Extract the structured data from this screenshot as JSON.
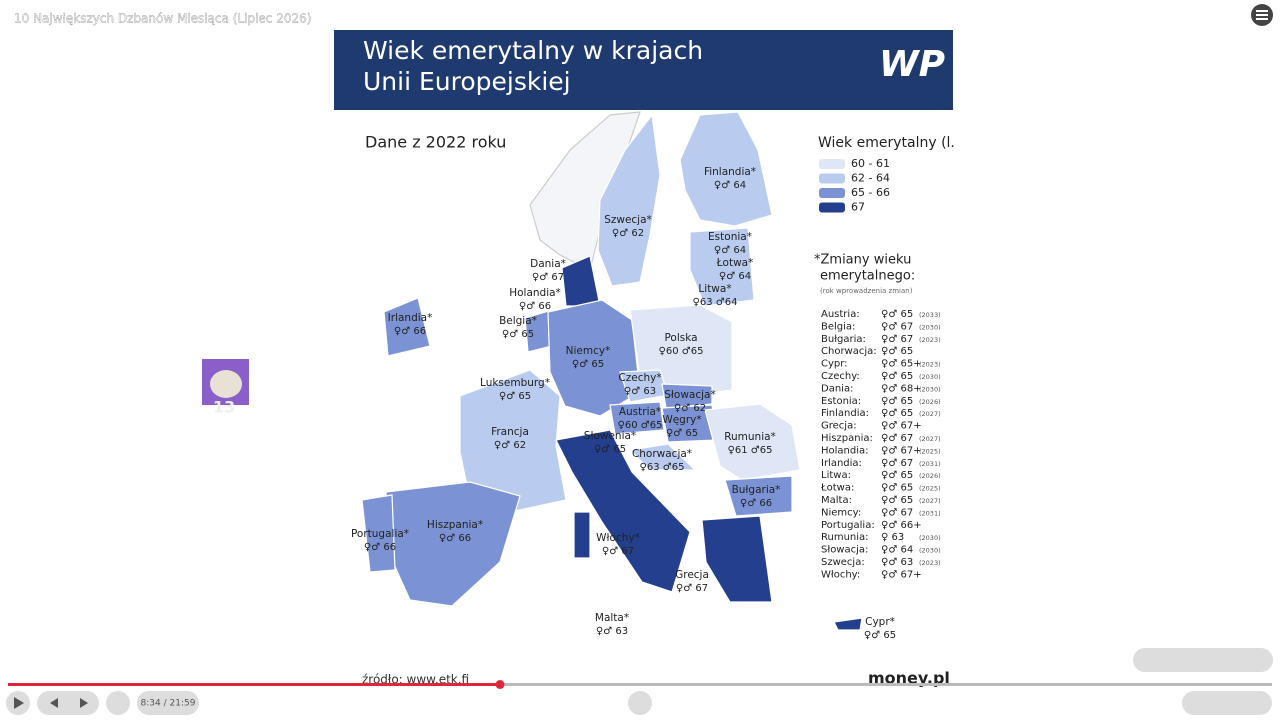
{
  "video": {
    "title": "10 Największych Dzbanów Miesiąca (Lipiec 2026)",
    "time": "8:34 / 21:59",
    "avatar_text": "13"
  },
  "slide": {
    "title_line1": "Wiek emerytalny w krajach",
    "title_line2": "Unii Europejskiej",
    "logo": "WP",
    "subtitle": "Dane z 2022 roku",
    "legend": {
      "title": "Wiek emerytalny (l.",
      "items": [
        {
          "label": "60 - 61",
          "color": "#dfe7f7"
        },
        {
          "label": "62 - 64",
          "color": "#b9cbef"
        },
        {
          "label": "65 - 66",
          "color": "#7b93d4"
        },
        {
          "label": "67",
          "color": "#243f8d"
        }
      ]
    },
    "changes": {
      "title_line1": "*Zmiany wieku",
      "title_line2": "emerytalnego:",
      "note": "(rok wprowadzenia zmian)",
      "rows": [
        [
          "Austria:",
          "♀♂ 65",
          "(2033)"
        ],
        [
          "Belgia:",
          "♀♂ 67",
          "(2030)"
        ],
        [
          "Bułgaria:",
          "♀♂ 67",
          "(2023)"
        ],
        [
          "Chorwacja:",
          "♀♂ 65",
          null
        ],
        [
          "Cypr:",
          "♀♂ 65+",
          "(2023)"
        ],
        [
          "Czechy:",
          "♀♂ 65",
          "(2030)"
        ],
        [
          "Dania:",
          "♀♂ 68+",
          "(2030)"
        ],
        [
          "Estonia:",
          "♀♂ 65",
          "(2026)"
        ],
        [
          "Finlandia:",
          "♀♂ 65",
          "(2027)"
        ],
        [
          "Grecja:",
          "♀♂ 67+",
          null
        ],
        [
          "Hiszpania:",
          "♀♂ 67",
          "(2027)"
        ],
        [
          "Holandia:",
          "♀♂ 67+",
          "(2025)"
        ],
        [
          "Irlandia:",
          "♀♂ 67",
          "(2031)"
        ],
        [
          "Litwa:",
          "♀♂ 65",
          "(2026)"
        ],
        [
          "Łotwa:",
          "♀♂ 65",
          "(2025)"
        ],
        [
          "Malta:",
          "♀♂ 65",
          "(2027)"
        ],
        [
          "Niemcy:",
          "♀♂ 67",
          "(2031)"
        ],
        [
          "Portugalia:",
          "♀♂ 66+",
          null
        ],
        [
          "Rumunia:",
          "♀ 63",
          "(2030)"
        ],
        [
          "Słowacja:",
          "♀♂ 64",
          "(2030)"
        ],
        [
          "Szwecja:",
          "♀♂ 63",
          "(2023)"
        ],
        [
          "Włochy:",
          "♀♂ 67+",
          null
        ]
      ]
    },
    "map_labels": [
      [
        "Finlandia*",
        "♀♂ 64"
      ],
      [
        "Szwecja*",
        "♀♂ 62"
      ],
      [
        "Estonia*",
        "♀♂ 64"
      ],
      [
        "Łotwa*",
        "♀♂ 64"
      ],
      [
        "Litwa*",
        "♀63 ♂64"
      ],
      [
        "Dania*",
        "♀♂ 67"
      ],
      [
        "Holandia*",
        "♀♂ 66"
      ],
      [
        "Irlandia*",
        "♀♂ 66"
      ],
      [
        "Belgia*",
        "♀♂ 65"
      ],
      [
        "Niemcy*",
        "♀♂ 65"
      ],
      [
        "Polska",
        "♀60 ♂65"
      ],
      [
        "Luksemburg*",
        "♀♂ 65"
      ],
      [
        "Czechy*",
        "♀♂ 63"
      ],
      [
        "Słowacja*",
        "♀♂ 62"
      ],
      [
        "Austria*",
        "♀60 ♂65"
      ],
      [
        "Węgry*",
        "♀♂ 65"
      ],
      [
        "Słowenia*",
        "♀♂ 65"
      ],
      [
        "Rumunia*",
        "♀61 ♂65"
      ],
      [
        "Francja",
        "♀♂ 62"
      ],
      [
        "Chorwacja*",
        "♀63 ♂65"
      ],
      [
        "Bułgaria*",
        "♀♂ 66"
      ],
      [
        "Portugalia*",
        "♀♂ 66"
      ],
      [
        "Hiszpania*",
        "♀♂ 66"
      ],
      [
        "Włochy*",
        "♀♂ 67"
      ],
      [
        "Grecja",
        "♀♂ 67"
      ],
      [
        "Malta*",
        "♀♂ 63"
      ],
      [
        "Cypr*",
        "♀♂ 65"
      ]
    ],
    "source": "źródło: www.etk.fi",
    "brand": "money.pl"
  }
}
